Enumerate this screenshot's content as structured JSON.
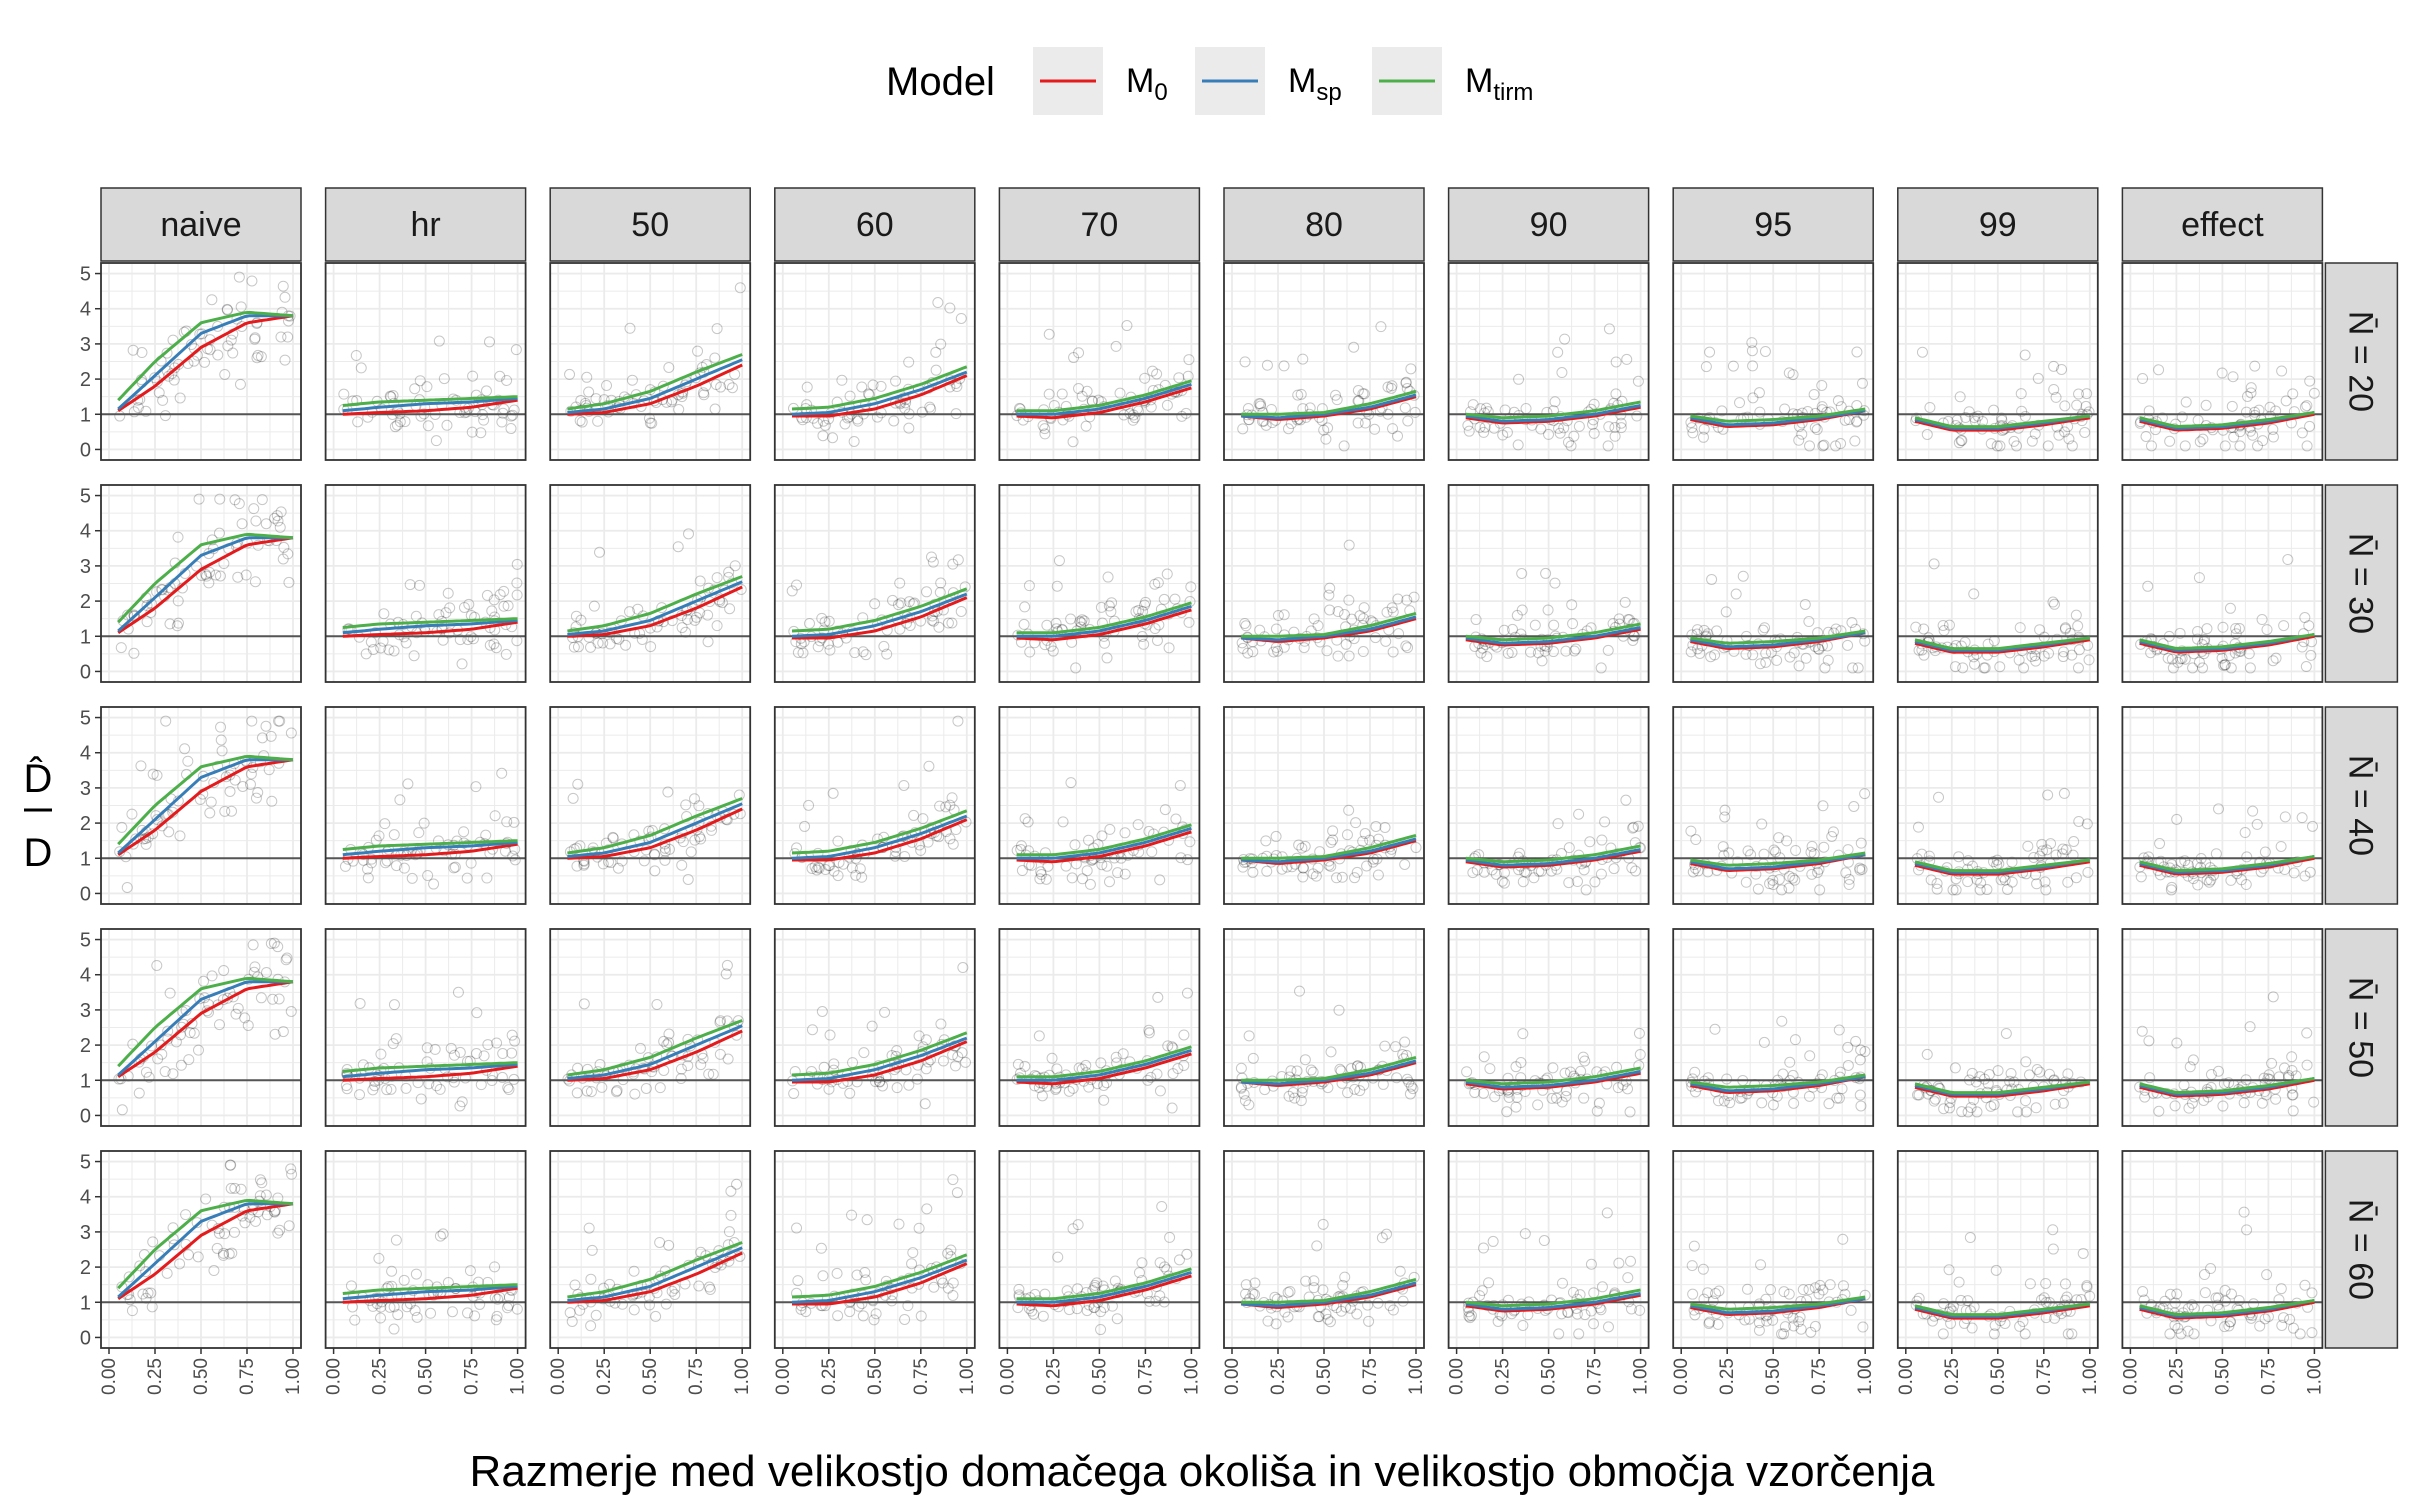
{
  "chart_data": {
    "type": "line",
    "facet_layout": "grid",
    "legend": {
      "title": "Model",
      "position": "top",
      "entries": [
        {
          "key": "M0",
          "label_main": "M",
          "label_sub": "0",
          "color": "#e41a1c"
        },
        {
          "key": "Msp",
          "label_main": "M",
          "label_sub": "sp",
          "color": "#377eb8"
        },
        {
          "key": "Mtirm",
          "label_main": "M",
          "label_sub": "tirm",
          "color": "#4daf4a"
        }
      ]
    },
    "xlabel": "Razmerje med velikostjo domačega okoliša in velikostjo območja vzorčenja",
    "ylabel_top": "D̂",
    "ylabel_bottom": "D",
    "x_ticks": [
      "0.00",
      "0.25",
      "0.50",
      "0.75",
      "1.00"
    ],
    "y_ticks": [
      "0",
      "1",
      "2",
      "3",
      "4",
      "5"
    ],
    "xlim": [
      0,
      1
    ],
    "ylim": [
      0,
      5
    ],
    "reference_line_y": 1,
    "grid": true,
    "column_facets": [
      "naive",
      "hr",
      "50",
      "60",
      "70",
      "80",
      "90",
      "95",
      "99",
      "effect"
    ],
    "row_facets": [
      "N̄ = 20",
      "N̄ = 30",
      "N̄ = 40",
      "N̄ = 50",
      "N̄ = 60"
    ],
    "x": [
      0.05,
      0.25,
      0.5,
      0.75,
      1.0
    ],
    "series_order": [
      "M0",
      "Msp",
      "Mtirm"
    ],
    "series_values_by_column": {
      "naive": {
        "M0": [
          1.1,
          1.8,
          2.9,
          3.6,
          3.8
        ],
        "Msp": [
          1.15,
          2.1,
          3.3,
          3.8,
          3.8
        ],
        "Mtirm": [
          1.4,
          2.5,
          3.6,
          3.9,
          3.8
        ]
      },
      "hr": {
        "M0": [
          1.0,
          1.05,
          1.1,
          1.2,
          1.4
        ],
        "Msp": [
          1.1,
          1.2,
          1.3,
          1.35,
          1.45
        ],
        "Mtirm": [
          1.25,
          1.35,
          1.4,
          1.45,
          1.5
        ]
      },
      "50": {
        "M0": [
          1.0,
          1.05,
          1.3,
          1.8,
          2.4
        ],
        "Msp": [
          1.05,
          1.15,
          1.45,
          2.0,
          2.55
        ],
        "Mtirm": [
          1.15,
          1.3,
          1.65,
          2.2,
          2.7
        ]
      },
      "60": {
        "M0": [
          0.95,
          0.95,
          1.15,
          1.55,
          2.1
        ],
        "Msp": [
          1.0,
          1.05,
          1.3,
          1.7,
          2.2
        ],
        "Mtirm": [
          1.15,
          1.2,
          1.45,
          1.85,
          2.35
        ]
      },
      "70": {
        "M0": [
          0.95,
          0.9,
          1.05,
          1.35,
          1.75
        ],
        "Msp": [
          1.0,
          1.0,
          1.15,
          1.45,
          1.85
        ],
        "Mtirm": [
          1.1,
          1.1,
          1.25,
          1.55,
          1.95
        ]
      },
      "80": {
        "M0": [
          0.95,
          0.85,
          0.95,
          1.15,
          1.5
        ],
        "Msp": [
          0.95,
          0.9,
          1.0,
          1.2,
          1.55
        ],
        "Mtirm": [
          1.0,
          1.0,
          1.05,
          1.3,
          1.65
        ]
      },
      "90": {
        "M0": [
          0.9,
          0.75,
          0.8,
          0.95,
          1.2
        ],
        "Msp": [
          0.95,
          0.8,
          0.85,
          1.0,
          1.25
        ],
        "Mtirm": [
          1.0,
          0.9,
          0.95,
          1.1,
          1.35
        ]
      },
      "95": {
        "M0": [
          0.85,
          0.65,
          0.7,
          0.85,
          1.1
        ],
        "Msp": [
          0.9,
          0.7,
          0.75,
          0.9,
          1.1
        ],
        "Mtirm": [
          0.95,
          0.8,
          0.85,
          0.95,
          1.15
        ]
      },
      "99": {
        "M0": [
          0.8,
          0.55,
          0.55,
          0.7,
          0.9
        ],
        "Msp": [
          0.85,
          0.6,
          0.6,
          0.75,
          0.95
        ],
        "Mtirm": [
          0.9,
          0.65,
          0.65,
          0.8,
          0.95
        ]
      },
      "effect": {
        "M0": [
          0.8,
          0.55,
          0.6,
          0.75,
          1.0
        ],
        "Msp": [
          0.85,
          0.6,
          0.65,
          0.8,
          1.05
        ],
        "Mtirm": [
          0.9,
          0.65,
          0.7,
          0.85,
          1.05
        ]
      }
    },
    "raw_points_shown": "semi-transparent open circles scattered around each curve"
  }
}
